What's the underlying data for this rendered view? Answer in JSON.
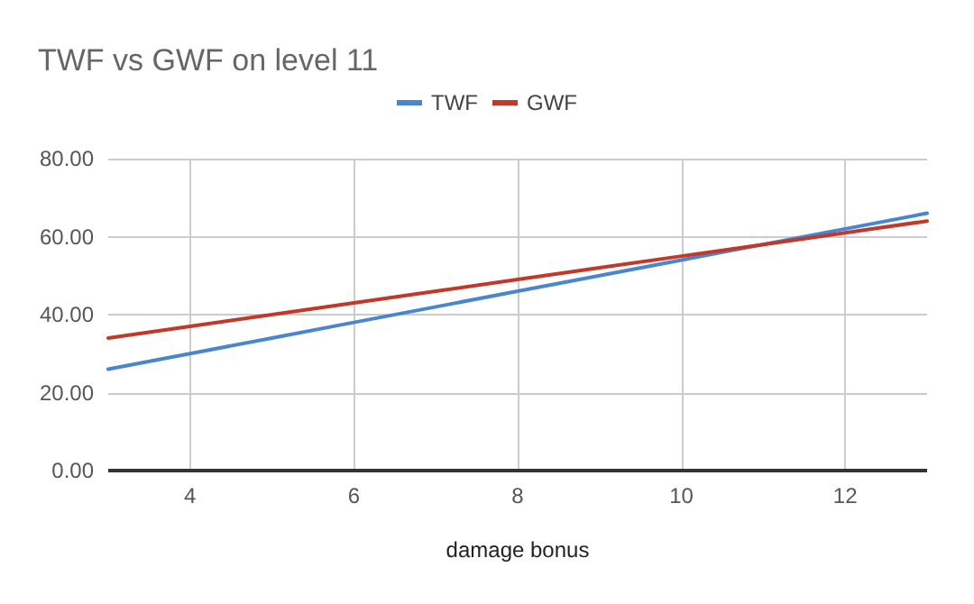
{
  "chart_data": {
    "type": "line",
    "title": "TWF vs GWF on level 11",
    "xlabel": "damage bonus",
    "x": [
      3,
      4,
      5,
      6,
      7,
      8,
      9,
      10,
      11,
      12,
      13
    ],
    "series": [
      {
        "name": "TWF",
        "color": "#4a86d0",
        "values": [
          26,
          30,
          34,
          38,
          42,
          46,
          50,
          54,
          58,
          62,
          66
        ]
      },
      {
        "name": "GWF",
        "color": "#c0392b",
        "values": [
          34,
          37,
          40,
          43,
          46,
          49,
          52,
          55,
          58,
          61,
          64
        ]
      }
    ],
    "xlim": [
      3,
      13
    ],
    "xticks": [
      4,
      6,
      8,
      10,
      12
    ],
    "ylim": [
      0,
      80
    ],
    "yticks": [
      {
        "value": 0,
        "label": "0.00"
      },
      {
        "value": 20,
        "label": "20.00"
      },
      {
        "value": 40,
        "label": "40.00"
      },
      {
        "value": 60,
        "label": "60.00"
      },
      {
        "value": 80,
        "label": "80.00"
      }
    ],
    "grid": true,
    "legend": "top",
    "marker": "none",
    "line_style": "solid"
  }
}
